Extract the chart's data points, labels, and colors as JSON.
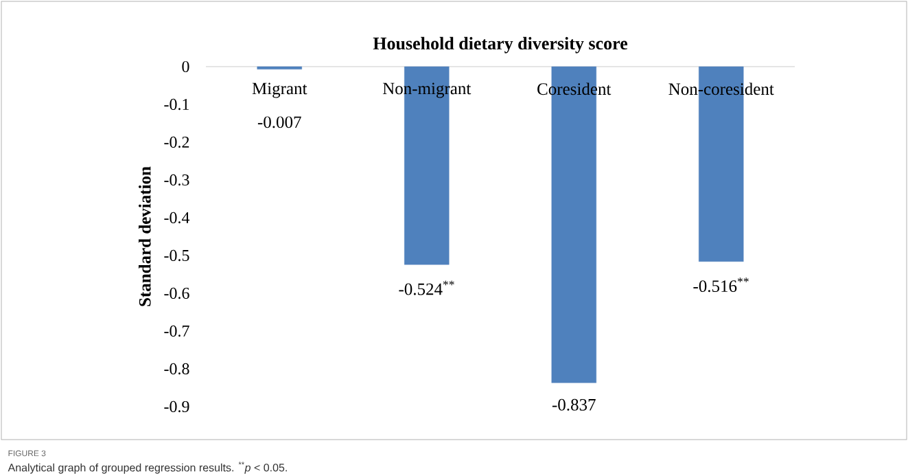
{
  "chart_data": {
    "type": "bar",
    "title": "Household dietary diversity score",
    "ylabel": "Standard deviation",
    "categories": [
      "Migrant",
      "Non-migrant",
      "Coresident",
      "Non-coresident"
    ],
    "values": [
      -0.007,
      -0.524,
      -0.837,
      -0.516
    ],
    "value_labels": [
      "-0.007",
      "-0.524$^{**}$",
      "-0.837",
      "-0.516$^{**}$"
    ],
    "color": "#4f81bd",
    "ylim": [
      -0.9,
      0
    ],
    "yticks": [
      0,
      -0.1,
      -0.2,
      -0.3,
      -0.4,
      -0.5,
      -0.6,
      -0.7,
      -0.8,
      -0.9
    ],
    "grid": false,
    "annotations": [
      "FIGURE 3",
      "Analytical graph of grouped regression results. $^{**}$*p* < 0.05."
    ]
  }
}
